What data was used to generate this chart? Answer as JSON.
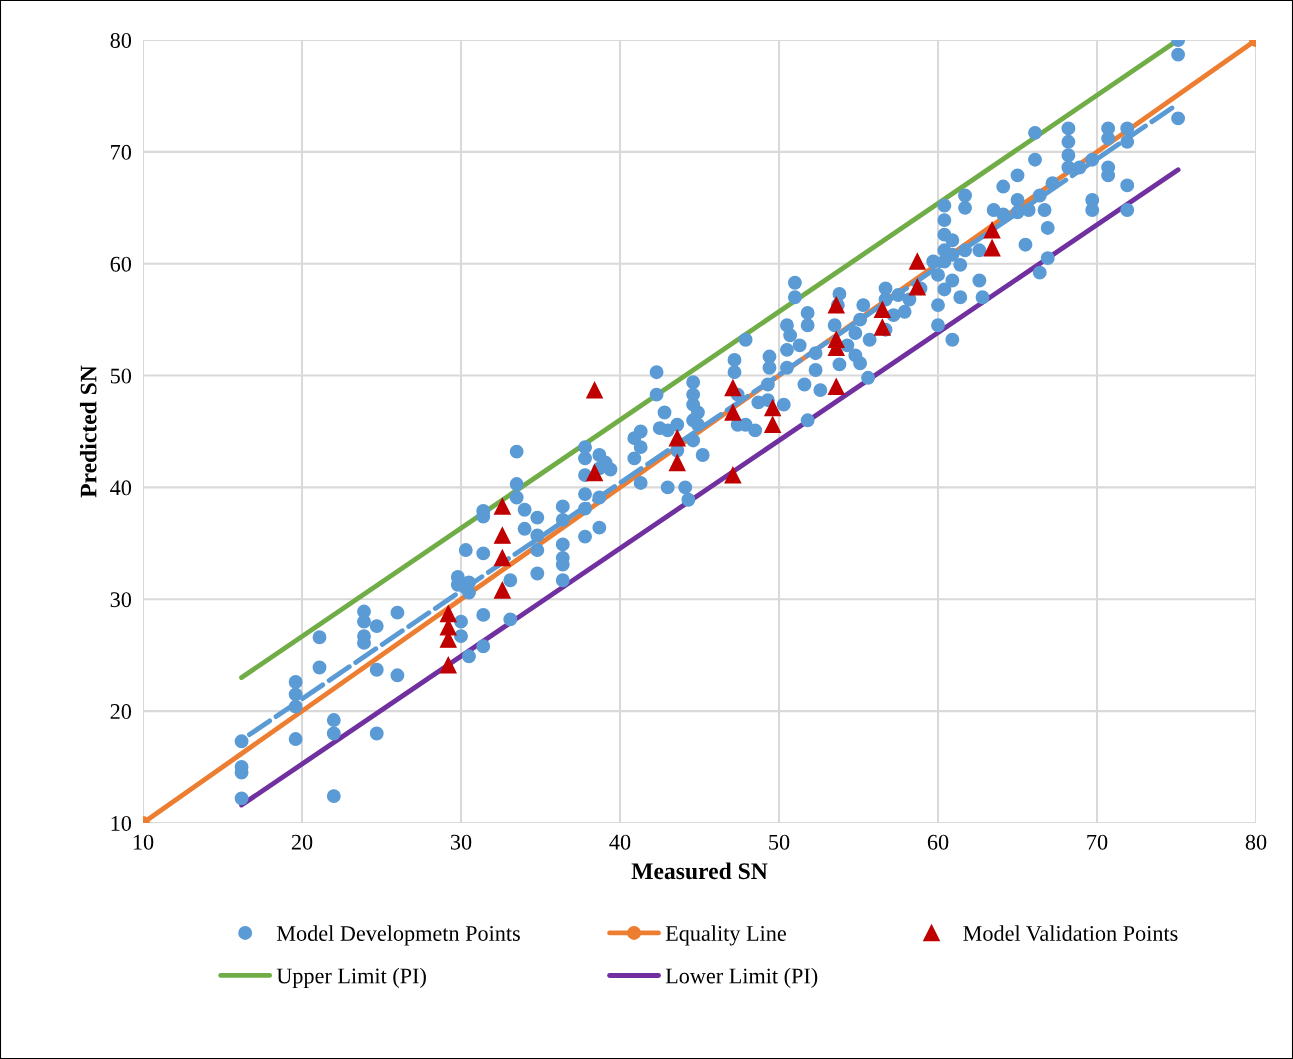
{
  "chart_data": {
    "type": "scatter",
    "xlabel": "Measured SN",
    "ylabel": "Predicted SN",
    "xlim": [
      10,
      80
    ],
    "ylim": [
      10,
      80
    ],
    "xticks": [
      10,
      20,
      30,
      40,
      50,
      60,
      70,
      80
    ],
    "yticks": [
      10,
      20,
      30,
      40,
      50,
      60,
      70,
      80
    ],
    "grid": true,
    "legend": "bottom",
    "series": [
      {
        "name": "Model Developmetn Points",
        "marker": "circle",
        "color": "#5b9bd5",
        "x": [
          16.2,
          16.2,
          16.2,
          16.2,
          19.6,
          19.6,
          19.6,
          19.6,
          21.1,
          21.1,
          22.0,
          22.0,
          22.0,
          23.9,
          23.9,
          23.9,
          23.9,
          24.7,
          24.7,
          24.7,
          26.0,
          26.0,
          29.8,
          29.8,
          30.0,
          30.0,
          30.3,
          30.5,
          30.5,
          30.5,
          31.4,
          31.4,
          31.4,
          31.4,
          31.4,
          33.1,
          33.1,
          33.5,
          33.5,
          33.5,
          34.0,
          34.0,
          34.8,
          34.8,
          34.8,
          34.8,
          36.4,
          36.4,
          36.4,
          36.4,
          36.4,
          36.4,
          37.8,
          37.8,
          37.8,
          37.8,
          37.8,
          37.8,
          38.7,
          38.7,
          38.7,
          38.7,
          39.1,
          39.4,
          40.9,
          40.9,
          41.3,
          41.3,
          41.3,
          42.3,
          42.3,
          42.5,
          42.8,
          43.0,
          43.0,
          43.6,
          43.6,
          44.1,
          44.3,
          44.6,
          44.6,
          44.6,
          44.6,
          44.6,
          44.9,
          44.9,
          45.2,
          47.2,
          47.2,
          47.4,
          47.4,
          47.9,
          47.9,
          48.5,
          48.7,
          49.3,
          49.3,
          49.4,
          49.4,
          50.3,
          50.5,
          50.5,
          50.5,
          50.7,
          51.0,
          51.0,
          51.3,
          51.6,
          51.8,
          51.8,
          51.8,
          52.3,
          52.3,
          52.6,
          53.5,
          53.7,
          53.8,
          53.8,
          54.3,
          54.8,
          54.8,
          55.1,
          55.1,
          55.3,
          55.6,
          55.7,
          56.7,
          56.7,
          56.7,
          57.2,
          57.5,
          57.9,
          58.2,
          58.9,
          59.7,
          60.0,
          60.0,
          60.0,
          60.4,
          60.4,
          60.4,
          60.4,
          60.4,
          60.4,
          60.9,
          60.9,
          60.9,
          60.9,
          61.4,
          61.4,
          61.7,
          61.7,
          61.7,
          62.6,
          62.6,
          62.8,
          63.5,
          64.1,
          64.1,
          65.0,
          65.0,
          65.0,
          65.5,
          65.7,
          66.1,
          66.1,
          66.4,
          66.4,
          66.7,
          66.9,
          66.9,
          67.2,
          68.2,
          68.2,
          68.2,
          68.2,
          68.9,
          69.7,
          69.7,
          69.7,
          70.7,
          70.7,
          70.7,
          70.7,
          71.9,
          71.9,
          71.9,
          71.9,
          75.1,
          75.1,
          75.1
        ],
        "values": [
          17.3,
          15.0,
          14.5,
          12.2,
          22.6,
          21.5,
          20.4,
          17.5,
          26.6,
          23.9,
          19.2,
          18.0,
          12.4,
          28.9,
          28.0,
          26.7,
          26.1,
          27.6,
          23.7,
          18.0,
          28.8,
          23.2,
          32.0,
          31.3,
          28.0,
          26.7,
          34.4,
          31.5,
          30.6,
          24.9,
          37.9,
          37.4,
          34.1,
          28.6,
          25.8,
          31.7,
          28.2,
          43.2,
          40.3,
          39.1,
          38.0,
          36.3,
          37.3,
          35.7,
          34.4,
          32.3,
          38.3,
          37.1,
          34.9,
          33.7,
          33.1,
          31.7,
          43.6,
          42.6,
          41.1,
          39.4,
          38.1,
          35.6,
          42.9,
          41.7,
          39.1,
          36.4,
          42.2,
          41.6,
          44.4,
          42.6,
          45.0,
          43.6,
          40.4,
          50.3,
          48.3,
          45.3,
          46.7,
          45.1,
          40.0,
          45.6,
          43.3,
          40.0,
          38.9,
          49.4,
          48.3,
          47.4,
          46.0,
          44.2,
          46.7,
          45.6,
          42.9,
          51.4,
          50.3,
          48.3,
          45.6,
          53.2,
          45.6,
          45.1,
          47.6,
          47.8,
          49.2,
          51.7,
          50.7,
          47.4,
          54.5,
          52.3,
          50.7,
          53.6,
          58.3,
          57.0,
          52.7,
          49.2,
          55.6,
          54.5,
          46.0,
          52.0,
          50.5,
          48.7,
          54.5,
          56.3,
          57.3,
          51.0,
          52.7,
          53.8,
          51.8,
          55.0,
          51.1,
          56.3,
          49.8,
          53.2,
          57.8,
          56.8,
          54.1,
          55.4,
          57.2,
          55.7,
          56.8,
          57.8,
          60.2,
          59.0,
          56.3,
          54.5,
          65.2,
          63.9,
          62.6,
          61.2,
          60.2,
          57.7,
          62.1,
          60.8,
          58.5,
          53.2,
          59.9,
          57.0,
          66.1,
          65.0,
          61.2,
          61.2,
          58.5,
          57.0,
          64.8,
          66.9,
          64.4,
          67.9,
          65.7,
          64.6,
          61.7,
          64.8,
          71.7,
          69.3,
          66.1,
          59.2,
          64.8,
          63.2,
          60.5,
          67.2,
          72.1,
          70.9,
          69.7,
          68.6,
          68.6,
          69.3,
          65.7,
          64.8,
          72.1,
          71.2,
          68.6,
          67.9,
          72.1,
          70.9,
          67.0,
          64.8,
          80.0,
          78.7,
          73.0
        ]
      },
      {
        "name": "Equality Line",
        "type": "line",
        "marker": "circle",
        "line_style": "solid",
        "color": "#ed7d31",
        "x": [
          10,
          80
        ],
        "values": [
          10,
          80
        ]
      },
      {
        "name": "Model Validation Points",
        "marker": "triangle",
        "color": "#c00000",
        "x": [
          29.2,
          29.2,
          29.2,
          29.2,
          32.6,
          32.6,
          32.6,
          32.6,
          38.4,
          38.4,
          43.6,
          43.6,
          47.1,
          47.1,
          47.1,
          49.6,
          49.6,
          53.6,
          53.6,
          53.6,
          53.6,
          56.5,
          56.5,
          58.7,
          58.7,
          63.4,
          63.4
        ],
        "values": [
          28.7,
          27.5,
          26.4,
          24.1,
          38.3,
          35.7,
          33.7,
          30.8,
          48.7,
          41.3,
          44.4,
          42.2,
          48.9,
          46.7,
          41.1,
          47.1,
          45.6,
          56.3,
          53.2,
          52.5,
          49.0,
          55.9,
          54.3,
          60.2,
          57.9,
          63.0,
          61.4
        ]
      },
      {
        "name": "Upper Limit (PI)",
        "type": "line",
        "marker": "none",
        "line_style": "solid",
        "color": "#70ad47",
        "x": [
          16.2,
          75.1
        ],
        "values": [
          23.0,
          80.0
        ]
      },
      {
        "name": "Lower Limit (PI)",
        "type": "line",
        "marker": "none",
        "line_style": "solid",
        "color": "#7030a0",
        "x": [
          16.2,
          75.1
        ],
        "values": [
          11.6,
          68.4
        ]
      },
      {
        "type": "line",
        "marker": "none",
        "line_style": "dashed",
        "color": "#5b9bd5",
        "x": [
          16.7,
          75.1
        ],
        "values": [
          17.9,
          74.3
        ]
      }
    ]
  }
}
